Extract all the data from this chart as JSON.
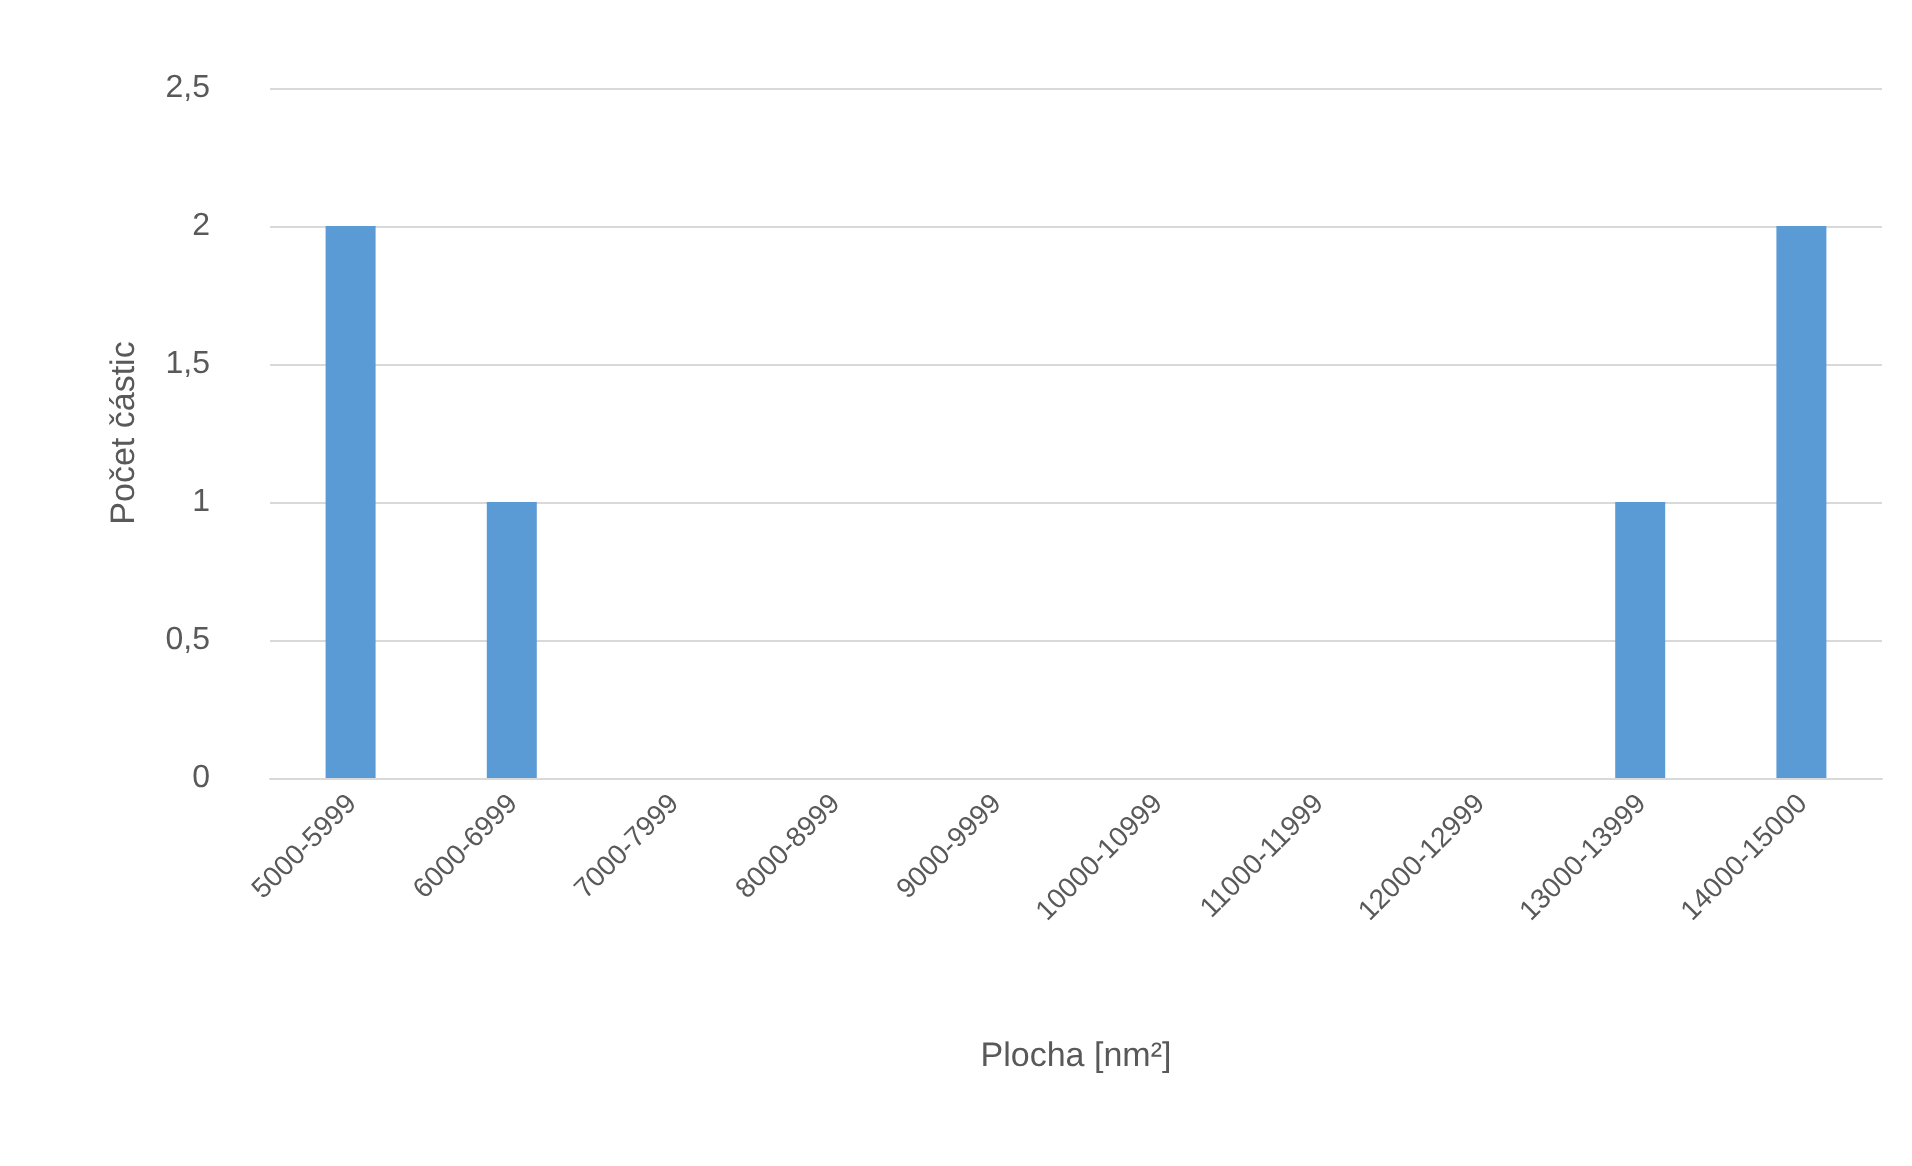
{
  "chart_data": {
    "type": "bar",
    "xlabel": "Plocha [nm²]",
    "ylabel": "Počet částic",
    "categories": [
      "5000-5999",
      "6000-6999",
      "7000-7999",
      "8000-8999",
      "9000-9999",
      "10000-10999",
      "11000-11999",
      "12000-12999",
      "13000-13999",
      "14000-15000"
    ],
    "values": [
      2,
      1,
      0,
      0,
      0,
      0,
      0,
      0,
      1,
      2
    ],
    "color": "#5b9bd5",
    "ylim": [
      0,
      2.5
    ],
    "yticks": [
      0,
      {
        "value": 0.5,
        "label": "0,5"
      },
      1,
      {
        "value": 1.5,
        "label": "1,5"
      },
      2,
      {
        "value": 2.5,
        "label": "2,5"
      }
    ],
    "grid": "y"
  }
}
